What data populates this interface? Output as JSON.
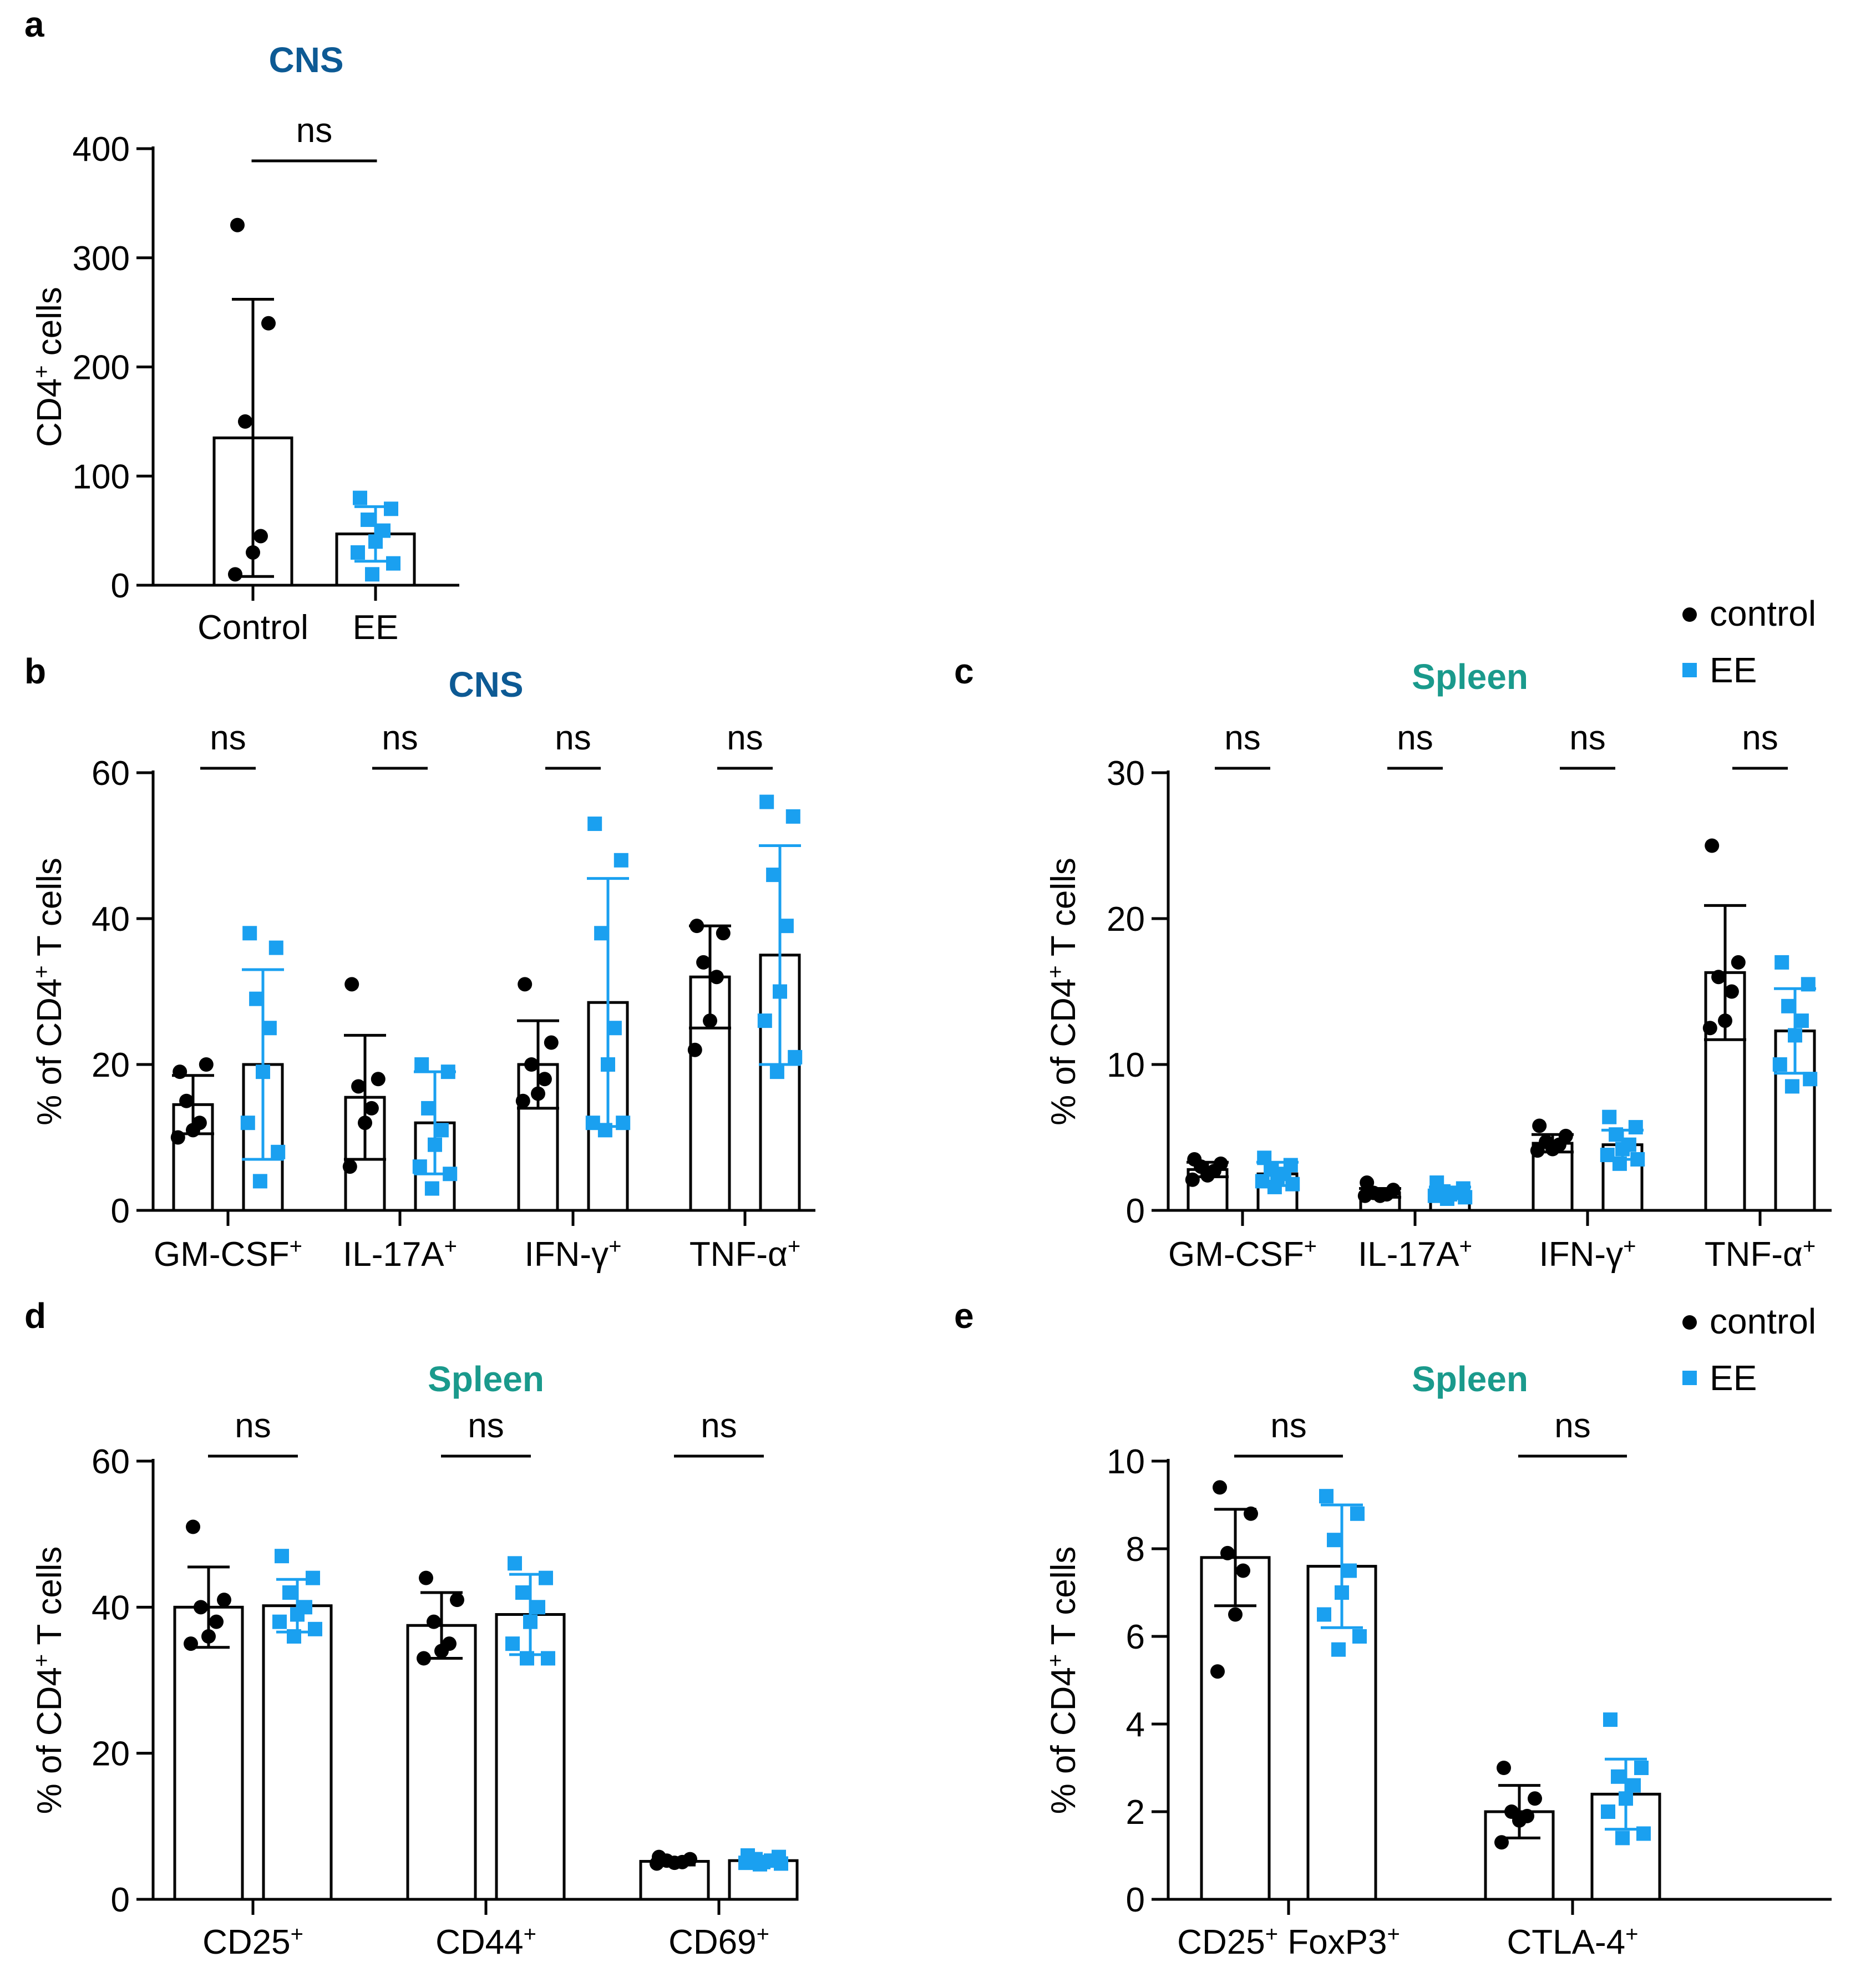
{
  "colors": {
    "control": "#000000",
    "ee": "#1aa0f0",
    "title_cns": "#0d5a94",
    "title_spleen": "#1a9a8c"
  },
  "legend_top": {
    "control_label": "control",
    "ee_label": "EE"
  },
  "legend_bottom": {
    "control_label": "control",
    "ee_label": "EE"
  },
  "chart_data": [
    {
      "panel": "a",
      "type": "bar",
      "title": "CNS",
      "title_color_key": "title_cns",
      "ylabel": "CD4+ cells",
      "ylabel_main": "CD4",
      "ylabel_sup": "+",
      "ylabel_rest": " cells",
      "ylim": [
        0,
        400
      ],
      "yticks": [
        0,
        100,
        200,
        300,
        400
      ],
      "layout": "two_groups",
      "categories": [
        {
          "label": "Control",
          "sup": ""
        },
        {
          "label": "EE",
          "sup": ""
        }
      ],
      "significance": [
        "ns"
      ],
      "series": [
        {
          "name": "Control",
          "group": "control",
          "means": [
            135
          ],
          "sd": [
            127
          ],
          "points": [
            [
              330,
              240,
              150,
              45,
              30,
              10
            ]
          ]
        },
        {
          "name": "EE",
          "group": "ee",
          "means": [
            47
          ],
          "sd": [
            25
          ],
          "points": [
            [
              80,
              70,
              60,
              50,
              40,
              30,
              20,
              10
            ]
          ]
        }
      ]
    },
    {
      "panel": "b",
      "type": "bar",
      "title": "CNS",
      "title_color_key": "title_cns",
      "ylabel": "% of CD4+ T cells",
      "ylabel_main": "% of CD4",
      "ylabel_sup": "+",
      "ylabel_rest": " T cells",
      "ylim": [
        0,
        60
      ],
      "yticks": [
        0,
        20,
        40,
        60
      ],
      "layout": "paired",
      "categories": [
        {
          "label": "GM-CSF",
          "sup": "+"
        },
        {
          "label": "IL-17A",
          "sup": "+"
        },
        {
          "label": "IFN-γ",
          "sup": "+"
        },
        {
          "label": "TNF-α",
          "sup": "+"
        }
      ],
      "significance": [
        "ns",
        "ns",
        "ns",
        "ns"
      ],
      "series": [
        {
          "name": "control",
          "group": "control",
          "means": [
            14.5,
            15.5,
            20,
            32
          ],
          "sd": [
            4,
            8.5,
            6,
            7
          ],
          "points": [
            [
              19,
              20,
              15,
              12,
              11,
              10
            ],
            [
              31,
              18,
              17,
              14,
              12,
              6
            ],
            [
              31,
              23,
              20,
              18,
              16,
              15
            ],
            [
              39,
              38,
              34,
              32,
              26,
              22
            ]
          ]
        },
        {
          "name": "EE",
          "group": "ee",
          "means": [
            20,
            12,
            28.5,
            35
          ],
          "sd": [
            13,
            7,
            17,
            15
          ],
          "points": [
            [
              38,
              36,
              29,
              25,
              19,
              12,
              8,
              4
            ],
            [
              20,
              19,
              14,
              11,
              9,
              6,
              5,
              3
            ],
            [
              53,
              48,
              38,
              25,
              20,
              12,
              12,
              11
            ],
            [
              56,
              54,
              46,
              39,
              30,
              26,
              21,
              19
            ]
          ]
        }
      ]
    },
    {
      "panel": "c",
      "type": "bar",
      "title": "Spleen",
      "title_color_key": "title_spleen",
      "ylabel": "% of CD4+ T cells",
      "ylabel_main": "% of CD4",
      "ylabel_sup": "+",
      "ylabel_rest": " T cells",
      "ylim": [
        0,
        30
      ],
      "yticks": [
        0,
        10,
        20,
        30
      ],
      "layout": "paired",
      "categories": [
        {
          "label": "GM-CSF",
          "sup": "+"
        },
        {
          "label": "IL-17A",
          "sup": "+"
        },
        {
          "label": "IFN-γ",
          "sup": "+"
        },
        {
          "label": "TNF-α",
          "sup": "+"
        }
      ],
      "significance": [
        "ns",
        "ns",
        "ns",
        "ns"
      ],
      "series": [
        {
          "name": "control",
          "group": "control",
          "means": [
            2.8,
            1.2,
            4.6,
            16.3
          ],
          "sd": [
            0.5,
            0.3,
            0.6,
            4.6
          ],
          "points": [
            [
              3.5,
              3.2,
              3.0,
              2.7,
              2.4,
              2.1
            ],
            [
              1.9,
              1.4,
              1.2,
              1.1,
              1.0,
              1.0
            ],
            [
              5.8,
              5.1,
              4.7,
              4.5,
              4.2,
              4.1
            ],
            [
              25,
              17,
              16,
              15,
              13,
              12.5
            ]
          ]
        },
        {
          "name": "EE",
          "group": "ee",
          "means": [
            2.5,
            1.2,
            4.5,
            12.3
          ],
          "sd": [
            0.8,
            0.4,
            1.0,
            2.9
          ],
          "points": [
            [
              3.6,
              3.1,
              2.8,
              2.5,
              2.2,
              2.0,
              1.8,
              1.6
            ],
            [
              1.9,
              1.5,
              1.3,
              1.2,
              1.1,
              1.0,
              0.9,
              0.8
            ],
            [
              6.4,
              5.7,
              5.2,
              4.5,
              4.2,
              3.8,
              3.5,
              3.2
            ],
            [
              17,
              15.5,
              14,
              13,
              12,
              10,
              9,
              8.5
            ]
          ]
        }
      ]
    },
    {
      "panel": "d",
      "type": "bar",
      "title": "Spleen",
      "title_color_key": "title_spleen",
      "ylabel": "% of CD4+ T cells",
      "ylabel_main": "% of CD4",
      "ylabel_sup": "+",
      "ylabel_rest": " T cells",
      "ylim": [
        0,
        60
      ],
      "yticks": [
        0,
        20,
        40,
        60
      ],
      "layout": "paired",
      "categories": [
        {
          "label": "CD25",
          "sup": "+"
        },
        {
          "label": "CD44",
          "sup": "+"
        },
        {
          "label": "CD69",
          "sup": "+"
        }
      ],
      "significance": [
        "ns",
        "ns",
        "ns"
      ],
      "series": [
        {
          "name": "control",
          "group": "control",
          "means": [
            40,
            37.5,
            5.2
          ],
          "sd": [
            5.5,
            4.5,
            0.5
          ],
          "points": [
            [
              51,
              41,
              40,
              38,
              36,
              35
            ],
            [
              44,
              41,
              38,
              35,
              34,
              33
            ],
            [
              5.8,
              5.5,
              5.3,
              5.1,
              5.0,
              4.9
            ]
          ]
        },
        {
          "name": "EE",
          "group": "ee",
          "means": [
            40.2,
            39,
            5.3
          ],
          "sd": [
            3.6,
            5.5,
            0.6
          ],
          "points": [
            [
              47,
              44,
              42,
              40,
              39,
              38,
              37,
              36
            ],
            [
              46,
              44,
              42,
              40,
              38,
              35,
              33,
              33
            ],
            [
              6.0,
              5.8,
              5.5,
              5.3,
              5.1,
              5.0,
              4.9,
              4.8
            ]
          ]
        }
      ]
    },
    {
      "panel": "e",
      "type": "bar",
      "title": "Spleen",
      "title_color_key": "title_spleen",
      "ylabel": "% of CD4+ T cells",
      "ylabel_main": "% of CD4",
      "ylabel_sup": "+",
      "ylabel_rest": " T cells",
      "ylim": [
        0,
        10
      ],
      "yticks": [
        0,
        2,
        4,
        6,
        8,
        10
      ],
      "layout": "paired",
      "categories": [
        {
          "label": "CD25",
          "sup": "+",
          "label2": " FoxP3",
          "sup2": "+"
        },
        {
          "label": "CTLA-4",
          "sup": "+"
        }
      ],
      "significance": [
        "ns",
        "ns"
      ],
      "series": [
        {
          "name": "control",
          "group": "control",
          "means": [
            7.8,
            2.0
          ],
          "sd": [
            1.1,
            0.6
          ],
          "points": [
            [
              9.4,
              8.8,
              7.9,
              7.5,
              6.5,
              5.2
            ],
            [
              3.0,
              2.3,
              2.0,
              1.9,
              1.8,
              1.3
            ]
          ]
        },
        {
          "name": "EE",
          "group": "ee",
          "means": [
            7.6,
            2.4
          ],
          "sd": [
            1.4,
            0.8
          ],
          "points": [
            [
              9.2,
              8.8,
              8.2,
              7.5,
              7.0,
              6.5,
              6.0,
              5.7
            ],
            [
              4.1,
              3.0,
              2.8,
              2.6,
              2.3,
              2.0,
              1.5,
              1.4
            ]
          ]
        }
      ]
    }
  ]
}
